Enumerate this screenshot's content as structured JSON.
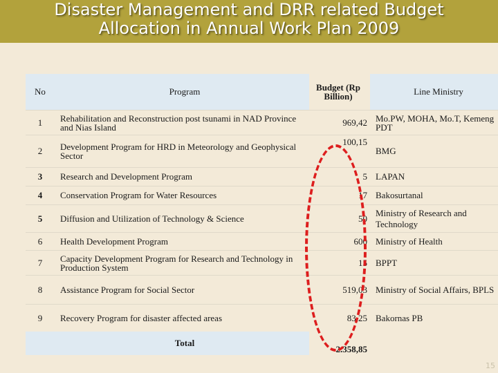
{
  "title": {
    "line1": "Disaster Management and DRR related Budget",
    "line2": "Allocation in Annual Work Plan 2009"
  },
  "table": {
    "headers": {
      "no": "No",
      "program": "Program",
      "budget": "Budget (Rp Billion)",
      "ministry": "Line Ministry"
    },
    "rows": [
      {
        "no": "1",
        "program": "Rehabilitation and Reconstruction post tsunami in NAD Province and Nias Island",
        "budget": "969,42",
        "ministry": "Mo.PW, MOHA, Mo.T, Kemeng PDT"
      },
      {
        "no": "2",
        "program": "Development Program for HRD in Meteorology and Geophysical Sector",
        "budget": "100,15",
        "ministry": "BMG"
      },
      {
        "no": "3",
        "program": "Research and Development Program",
        "budget": "5",
        "ministry": "LAPAN"
      },
      {
        "no": "4",
        "program": "Conservation Program for Water Resources",
        "budget": "17",
        "ministry": "Bakosurtanal"
      },
      {
        "no": "5",
        "program": "Diffusion and Utilization of Technology & Science",
        "budget": "50",
        "ministry": "Ministry of Research and Technology"
      },
      {
        "no": "6",
        "program": "Health Development Program",
        "budget": "600",
        "ministry": "Ministry of Health"
      },
      {
        "no": "7",
        "program": "Capacity Development Program for Research and Technology in Production System",
        "budget": "15",
        "ministry": "BPPT"
      },
      {
        "no": "8",
        "program": "Assistance Program for Social Sector",
        "budget": "519,03",
        "ministry": "Ministry of Social Affairs, BPLS"
      },
      {
        "no": "9",
        "program": "Recovery Program for disaster affected areas",
        "budget": "83,25",
        "ministry": "Bakornas PB"
      }
    ],
    "total": {
      "label": "Total",
      "budget": "2.358,85"
    }
  },
  "page_number": "15",
  "colors": {
    "title_band": "#b2a23c",
    "highlight_oval": "#dd1e1e",
    "background": "#f3ead8"
  }
}
